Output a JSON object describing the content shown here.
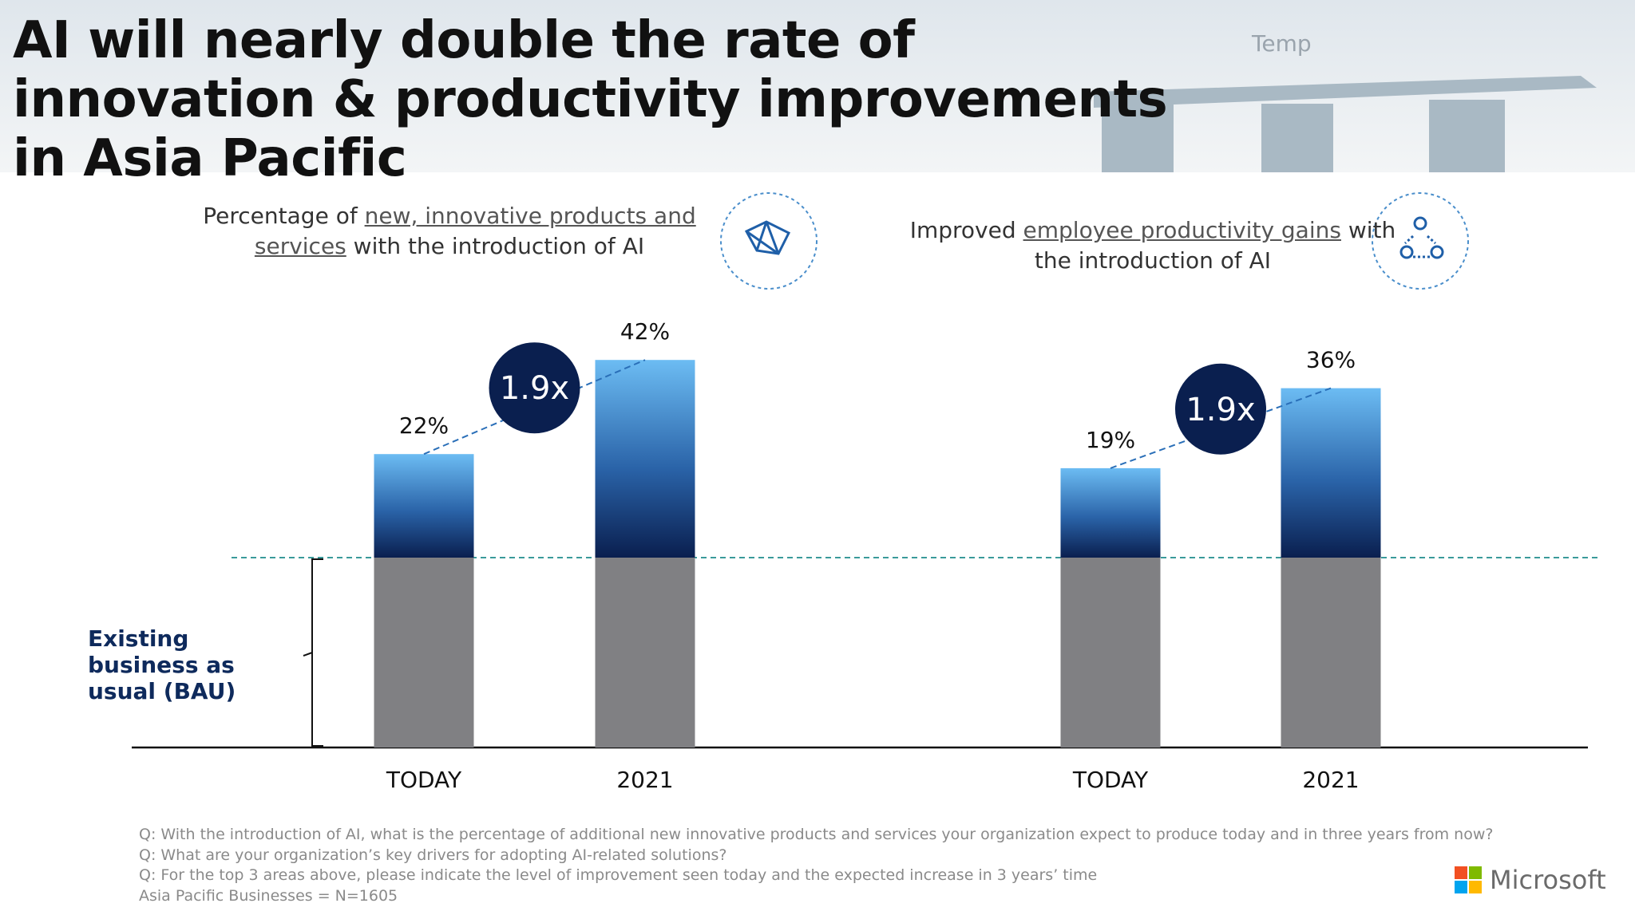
{
  "header": {
    "title": "AI will nearly double the rate of innovation & productivity improvements in Asia Pacific",
    "overlay": "Temp"
  },
  "chart_data": [
    {
      "type": "bar",
      "title_parts": [
        "Percentage of ",
        "new, innovative products and services",
        " with the introduction of AI"
      ],
      "categories": [
        "TODAY",
        "2021"
      ],
      "values": [
        22,
        42
      ],
      "value_labels": [
        "22%",
        "42%"
      ],
      "annotation": "1.9x",
      "color": "#0a1f4f"
    },
    {
      "type": "bar",
      "title_parts": [
        "Improved ",
        "employee productivity gains",
        " with the introduction of AI"
      ],
      "categories": [
        "TODAY",
        "2021"
      ],
      "values": [
        19,
        36
      ],
      "value_labels": [
        "19%",
        "36%"
      ],
      "annotation": "1.9x",
      "color": "#0a1f4f"
    }
  ],
  "bau_label": "Existing business as usual (BAU)",
  "footnotes": [
    "Q: With the introduction of AI, what is the percentage of additional new innovative products and services your organization expect to produce today and in three years from now?",
    "Q: What are your organization’s key drivers for adopting AI-related solutions?",
    "Q: For the top 3 areas above, please indicate the level of improvement seen today and the expected increase in 3 years’ time",
    "Asia Pacific Businesses = N=1605"
  ],
  "brand": "Microsoft"
}
